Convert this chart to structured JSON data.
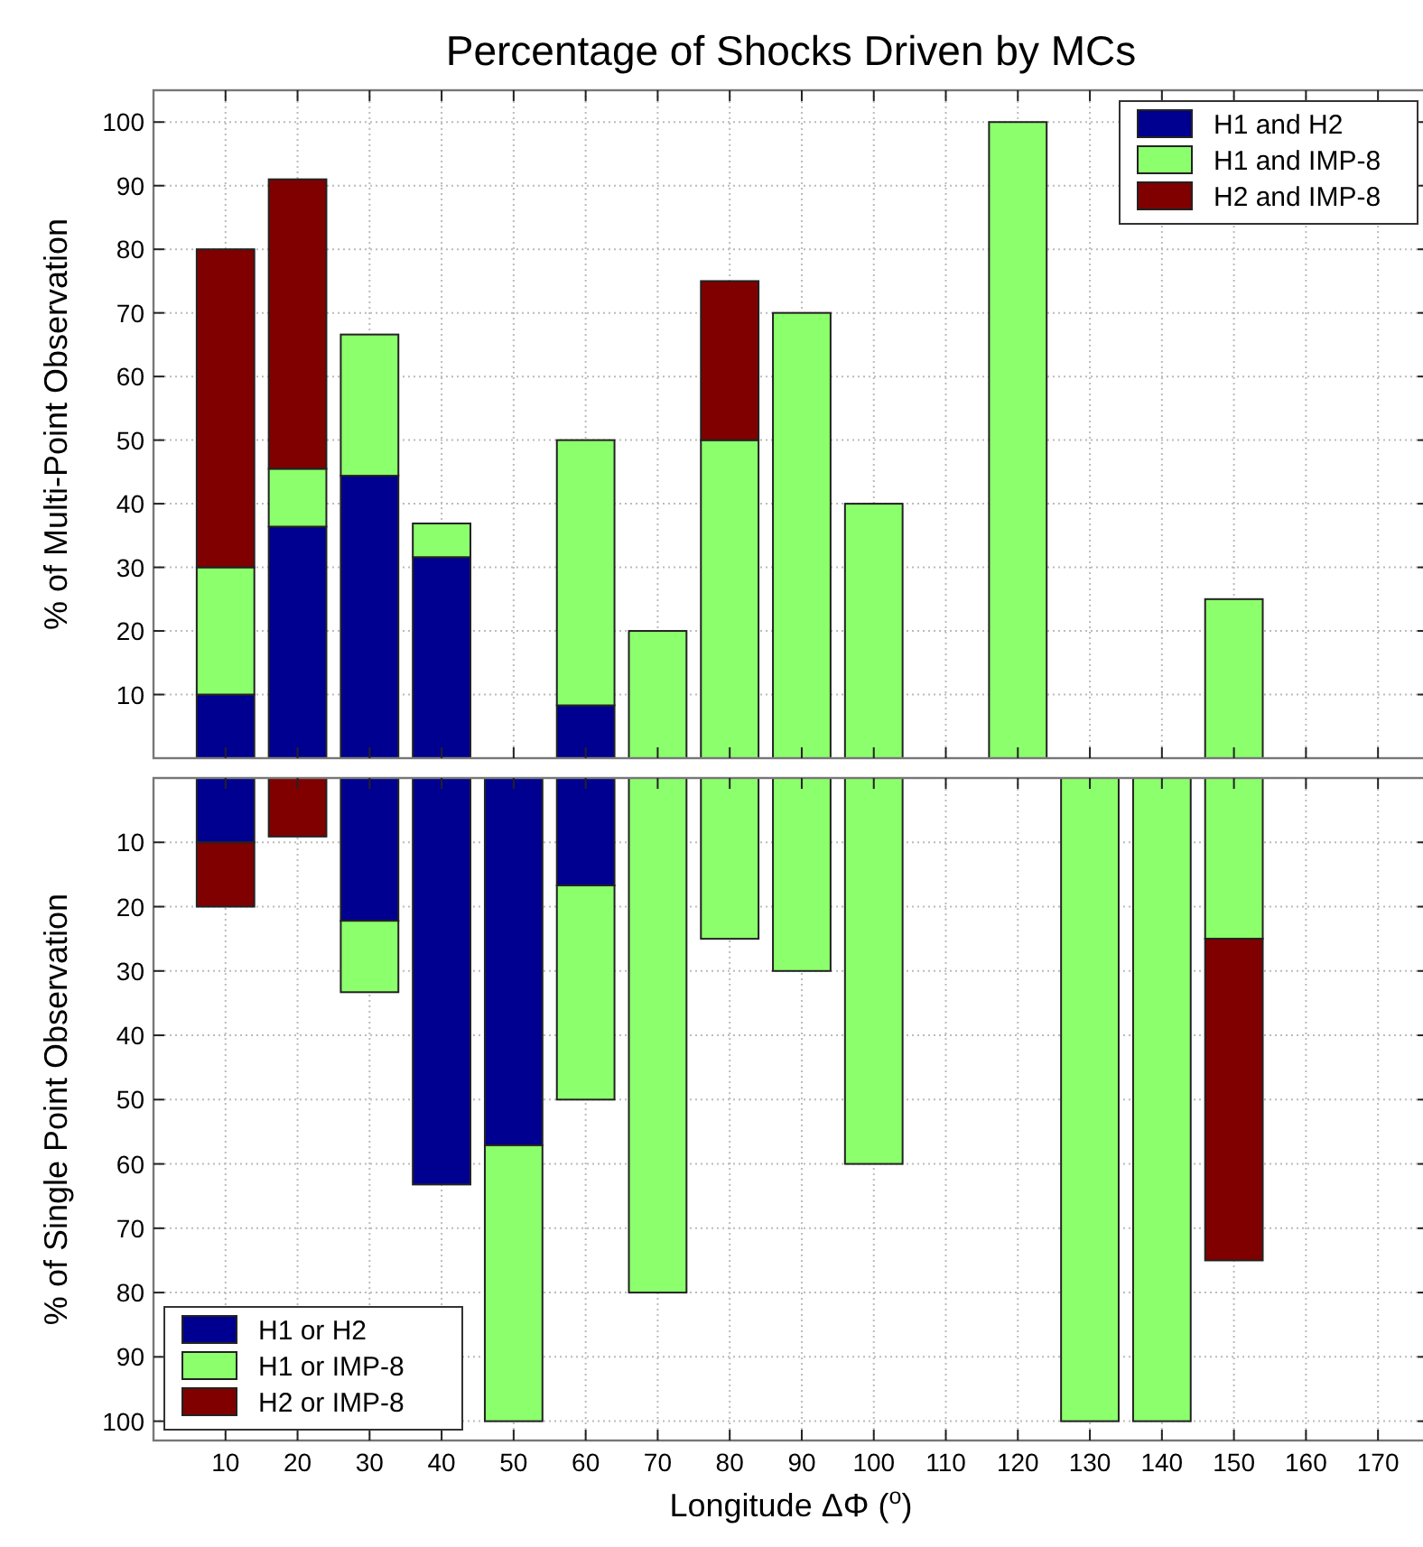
{
  "chart_data": [
    {
      "type": "bar",
      "title": "Percentage of Shocks Driven by MCs",
      "ylabel": "% of Multi-Point Observation",
      "stacked": true,
      "x": [
        10,
        20,
        30,
        40,
        50,
        60,
        70,
        80,
        90,
        100,
        110,
        120,
        130,
        140,
        150
      ],
      "xlim": [
        0,
        177
      ],
      "xticks": [
        10,
        20,
        30,
        40,
        50,
        60,
        70,
        80,
        90,
        100,
        110,
        120,
        130,
        140,
        150,
        160,
        170
      ],
      "ylim": [
        0,
        105
      ],
      "yticks": [
        10,
        20,
        30,
        40,
        50,
        60,
        70,
        80,
        90,
        100
      ],
      "tick_labels": "y",
      "grid": true,
      "legend": "top right",
      "series": [
        {
          "name": "H1 and H2",
          "color": "#000090",
          "values": [
            10,
            36.4,
            44.4,
            31.6,
            null,
            8.3,
            null,
            null,
            null,
            null,
            null,
            null,
            null,
            null,
            null
          ]
        },
        {
          "name": "H1 and IMP-8",
          "color": "#8cff6c",
          "values": [
            20,
            9.1,
            22.2,
            5.3,
            null,
            41.7,
            20,
            50,
            70,
            40,
            null,
            100,
            null,
            null,
            25
          ]
        },
        {
          "name": "H2 and IMP-8",
          "color": "#800000",
          "values": [
            50,
            45.5,
            null,
            null,
            null,
            null,
            null,
            25,
            null,
            null,
            null,
            null,
            null,
            null,
            null
          ]
        }
      ]
    },
    {
      "type": "bar",
      "ylabel": "% of Single Point Observation",
      "xlabel": "Longitude ΔΦ ($^{o}$)",
      "stacked": true,
      "x": [
        10,
        20,
        30,
        40,
        50,
        60,
        70,
        80,
        90,
        100,
        110,
        120,
        130,
        140,
        150
      ],
      "xlim": [
        0,
        177
      ],
      "xticks": [
        10,
        20,
        30,
        40,
        50,
        60,
        70,
        80,
        90,
        100,
        110,
        120,
        130,
        140,
        150,
        160,
        170
      ],
      "ylim": [
        103,
        0
      ],
      "yticks": [
        10,
        20,
        30,
        40,
        50,
        60,
        70,
        80,
        90,
        100
      ],
      "grid": true,
      "legend": "bottom left",
      "series": [
        {
          "name": "H1 or H2",
          "color": "#000090",
          "values": [
            10,
            null,
            22.2,
            63.2,
            57.1,
            16.7,
            null,
            null,
            null,
            null,
            null,
            null,
            null,
            null,
            null
          ]
        },
        {
          "name": "H1 or IMP-8",
          "color": "#8cff6c",
          "values": [
            null,
            null,
            11.1,
            null,
            42.9,
            33.3,
            80,
            25,
            30,
            60,
            null,
            null,
            100,
            100,
            25
          ]
        },
        {
          "name": "H2 or IMP-8",
          "color": "#800000",
          "values": [
            10,
            9.1,
            null,
            null,
            null,
            null,
            null,
            null,
            null,
            null,
            null,
            null,
            null,
            null,
            50
          ]
        }
      ]
    }
  ]
}
